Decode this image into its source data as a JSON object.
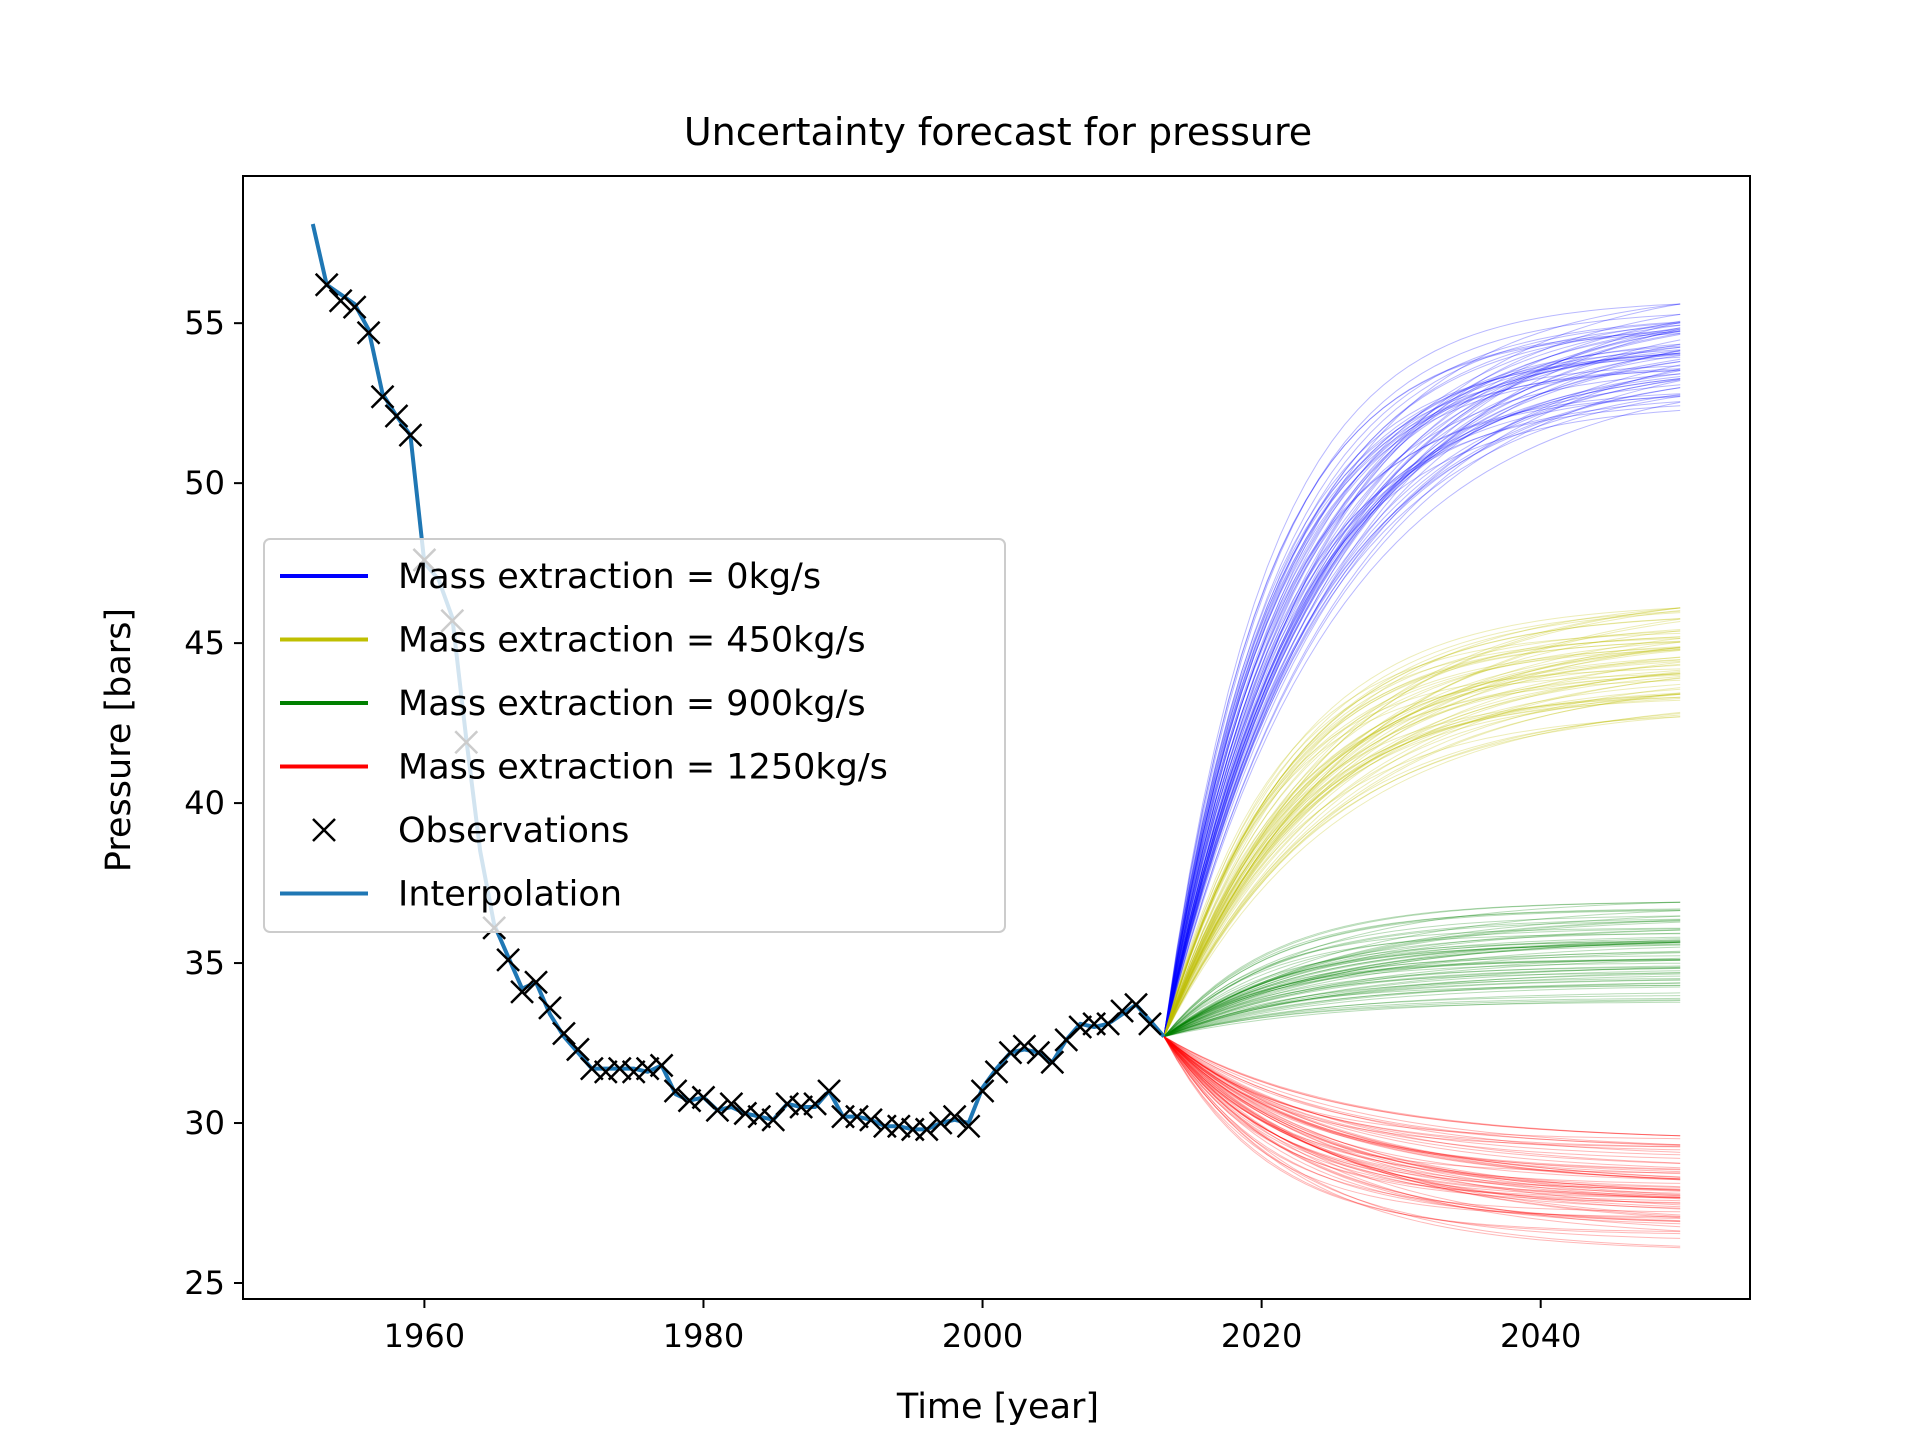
{
  "chart_data": {
    "type": "line",
    "title": "Uncertainty forecast for pressure",
    "xlabel": "Time [year]",
    "ylabel": "Pressure [bars]",
    "xlim": [
      1947,
      2055
    ],
    "ylim": [
      24.5,
      59.6
    ],
    "xticks": [
      1960,
      1980,
      2000,
      2020,
      2040
    ],
    "yticks": [
      25,
      30,
      35,
      40,
      45,
      50,
      55
    ],
    "grid": false,
    "legend_position": "center-left",
    "legend": [
      {
        "label": "Mass extraction = 0kg/s",
        "color": "#0000ff",
        "kind": "line"
      },
      {
        "label": "Mass extraction = 450kg/s",
        "color": "#bfbf00",
        "kind": "line"
      },
      {
        "label": "Mass extraction = 900kg/s",
        "color": "#008000",
        "kind": "line"
      },
      {
        "label": "Mass extraction = 1250kg/s",
        "color": "#ff0000",
        "kind": "line"
      },
      {
        "label": "Observations",
        "color": "#000000",
        "kind": "marker"
      },
      {
        "label": "Interpolation",
        "color": "#1f77b4",
        "kind": "line"
      }
    ],
    "observations": {
      "marker": "x",
      "x": [
        1953,
        1954,
        1955,
        1956,
        1957,
        1958,
        1959,
        1960,
        1962,
        1963,
        1965,
        1966,
        1967,
        1968,
        1969,
        1970,
        1971,
        1972,
        1973,
        1974,
        1975,
        1976,
        1977,
        1978,
        1979,
        1980,
        1981,
        1982,
        1983,
        1984,
        1985,
        1986,
        1987,
        1988,
        1989,
        1990,
        1991,
        1992,
        1993,
        1994,
        1995,
        1996,
        1997,
        1998,
        1999,
        2000,
        2001,
        2002,
        2003,
        2004,
        2005,
        2006,
        2007,
        2008,
        2009,
        2010,
        2011,
        2012
      ],
      "y": [
        56.2,
        55.7,
        55.5,
        54.7,
        52.7,
        52.1,
        51.5,
        47.6,
        45.7,
        41.9,
        36.1,
        35.1,
        34.1,
        34.4,
        33.6,
        32.8,
        32.3,
        31.7,
        31.6,
        31.7,
        31.6,
        31.7,
        31.8,
        31.0,
        30.7,
        30.8,
        30.4,
        30.6,
        30.3,
        30.2,
        30.1,
        30.6,
        30.5,
        30.6,
        31.0,
        30.2,
        30.2,
        30.1,
        29.9,
        29.9,
        29.8,
        29.8,
        30.0,
        30.2,
        29.9,
        31.0,
        31.6,
        32.2,
        32.4,
        32.2,
        31.9,
        32.6,
        33.0,
        33.1,
        33.1,
        33.5,
        33.7,
        33.1
      ]
    },
    "interpolation": {
      "x": [
        1952,
        1953,
        1954,
        1955,
        1956,
        1957,
        1958,
        1959,
        1960,
        1961,
        1962,
        1963,
        1964,
        1965,
        1966,
        1967,
        1968,
        1969,
        1970,
        1971,
        1972,
        1973,
        1974,
        1975,
        1976,
        1977,
        1978,
        1979,
        1980,
        1981,
        1982,
        1983,
        1984,
        1985,
        1986,
        1987,
        1988,
        1989,
        1990,
        1991,
        1992,
        1993,
        1994,
        1995,
        1996,
        1997,
        1998,
        1999,
        2000,
        2001,
        2002,
        2003,
        2004,
        2005,
        2006,
        2007,
        2008,
        2009,
        2010,
        2011,
        2012,
        2013
      ],
      "y": [
        58.1,
        56.2,
        55.9,
        55.6,
        54.8,
        52.8,
        52.1,
        51.5,
        47.5,
        47.0,
        45.8,
        42.0,
        38.5,
        36.2,
        35.2,
        34.2,
        34.4,
        33.4,
        32.7,
        32.2,
        31.7,
        31.7,
        31.7,
        31.7,
        31.6,
        31.8,
        30.9,
        30.7,
        30.8,
        30.4,
        30.5,
        30.3,
        30.2,
        30.1,
        30.6,
        30.5,
        30.5,
        31.0,
        30.2,
        30.2,
        30.1,
        29.9,
        29.9,
        29.8,
        29.8,
        30.0,
        30.1,
        30.0,
        31.1,
        31.7,
        32.2,
        32.3,
        32.2,
        31.9,
        32.6,
        33.1,
        33.0,
        33.1,
        33.4,
        33.7,
        33.2,
        32.7
      ]
    },
    "forecast": {
      "x_start": 2013,
      "x_end": 2050,
      "y_start": 32.7,
      "series": [
        {
          "name": "Mass extraction = 0kg/s",
          "color": "#0000ff",
          "final_min": 52.1,
          "final_max": 55.6
        },
        {
          "name": "Mass extraction = 450kg/s",
          "color": "#bfbf00",
          "final_min": 42.7,
          "final_max": 46.1
        },
        {
          "name": "Mass extraction = 900kg/s",
          "color": "#008000",
          "final_min": 33.5,
          "final_max": 36.9
        },
        {
          "name": "Mass extraction = 1250kg/s",
          "color": "#ff0000",
          "final_min": 26.1,
          "final_max": 29.6
        }
      ]
    }
  }
}
